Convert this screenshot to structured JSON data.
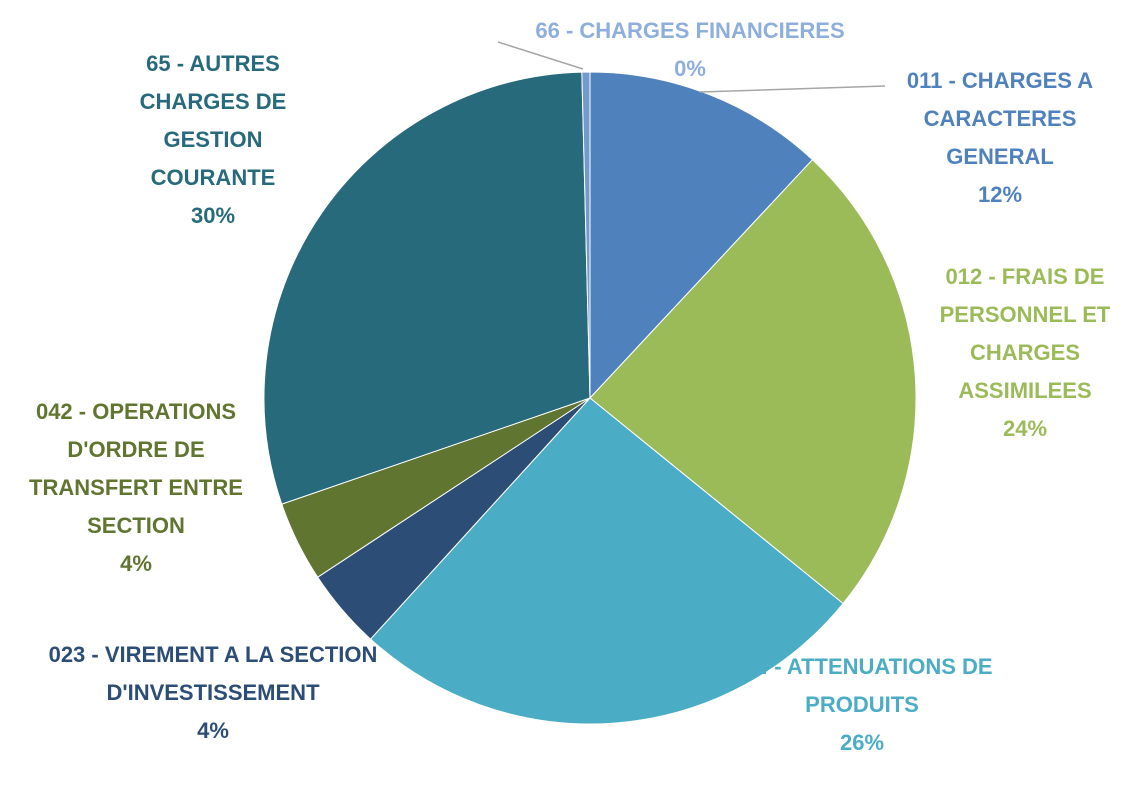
{
  "chart_data": {
    "type": "pie",
    "categories": [
      "011 - CHARGES A CARACTERES GENERAL",
      "012 - FRAIS DE PERSONNEL ET CHARGES ASSIMILEES",
      "014 - ATTENUATIONS DE PRODUITS",
      "023 - VIREMENT A LA SECTION D'INVESTISSEMENT",
      "042 - OPERATIONS D'ORDRE DE TRANSFERT ENTRE SECTION",
      "65 - AUTRES CHARGES DE GESTION COURANTE",
      "66 - CHARGES FINANCIERES"
    ],
    "values": [
      12,
      24,
      26,
      4,
      4,
      30,
      0.4
    ],
    "value_labels": [
      "12%",
      "24%",
      "26%",
      "4%",
      "4%",
      "30%",
      "0%"
    ],
    "colors": [
      "#4f81bd",
      "#9bbb59",
      "#4bacc6",
      "#2c4d75",
      "#5f7530",
      "#276a7c",
      "#729aca"
    ],
    "label_colors": [
      "#4f81bd",
      "#9bbb59",
      "#4bacc6",
      "#2c4d75",
      "#5f7530",
      "#276a7c",
      "#8eaedb"
    ]
  }
}
